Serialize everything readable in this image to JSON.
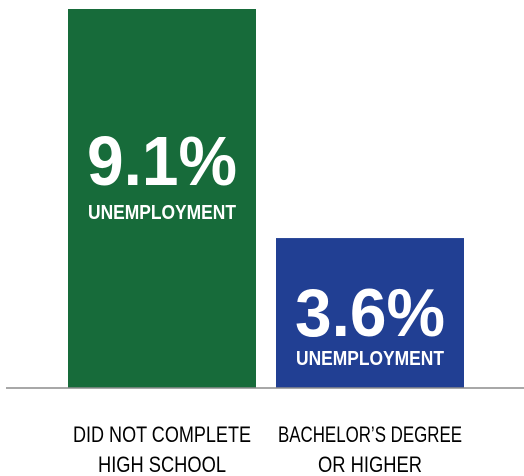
{
  "chart_data": {
    "type": "bar",
    "categories": [
      [
        "DID NOT COMPLETE",
        "HIGH SCHOOL"
      ],
      [
        "BACHELOR’S DEGREE",
        "OR HIGHER"
      ]
    ],
    "values": [
      9.1,
      3.6
    ],
    "value_labels": [
      "9.1%",
      "3.6%"
    ],
    "bar_sublabels": [
      "UNEMPLOYMENT",
      "UNEMPLOYMENT"
    ],
    "colors": [
      "#176b3a",
      "#213f93"
    ],
    "ylim": [
      0,
      9.1
    ],
    "grid": false,
    "legend": "none",
    "title": "",
    "xlabel": "",
    "ylabel": ""
  }
}
